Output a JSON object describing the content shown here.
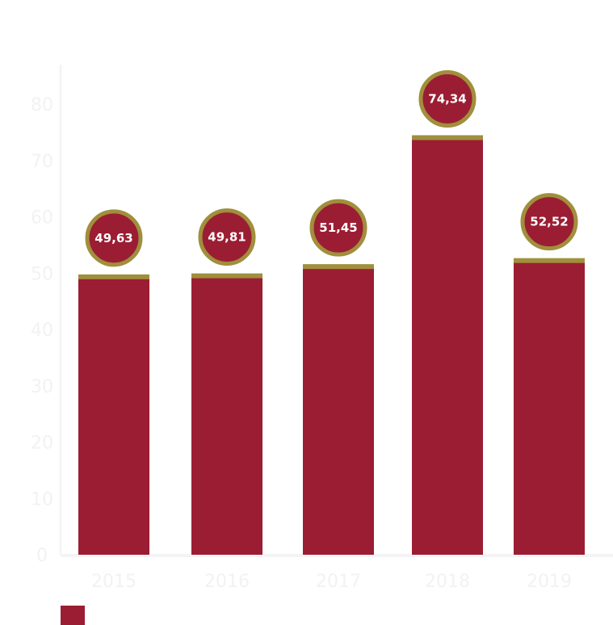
{
  "chart_data": {
    "type": "bar",
    "categories": [
      "2015",
      "2016",
      "2017",
      "2018",
      "2019"
    ],
    "values": [
      49.63,
      49.81,
      51.45,
      74.34,
      52.52
    ],
    "value_labels": [
      "49,63",
      "49,81",
      "51,45",
      "74,34",
      "52,52"
    ],
    "ylim": [
      0,
      80
    ],
    "yticks": [
      0,
      10,
      20,
      30,
      40,
      50,
      60,
      70,
      80
    ],
    "ytick_labels": [
      "0",
      "10",
      "20",
      "30",
      "40",
      "50",
      "60",
      "70",
      "80"
    ],
    "grid": false,
    "legend": "bottom-left",
    "title": "",
    "xlabel": "",
    "ylabel": ""
  },
  "colors": {
    "bar": "#9b1d33",
    "cap": "#a08f3c",
    "bubble_fill": "#9b1d33",
    "bubble_ring": "#a08f3c",
    "label_text": "#ffffff",
    "tick_text": "#f2f2f5",
    "axis_line": "#f4f4f6",
    "legend_swatch": "#9b1d33"
  }
}
